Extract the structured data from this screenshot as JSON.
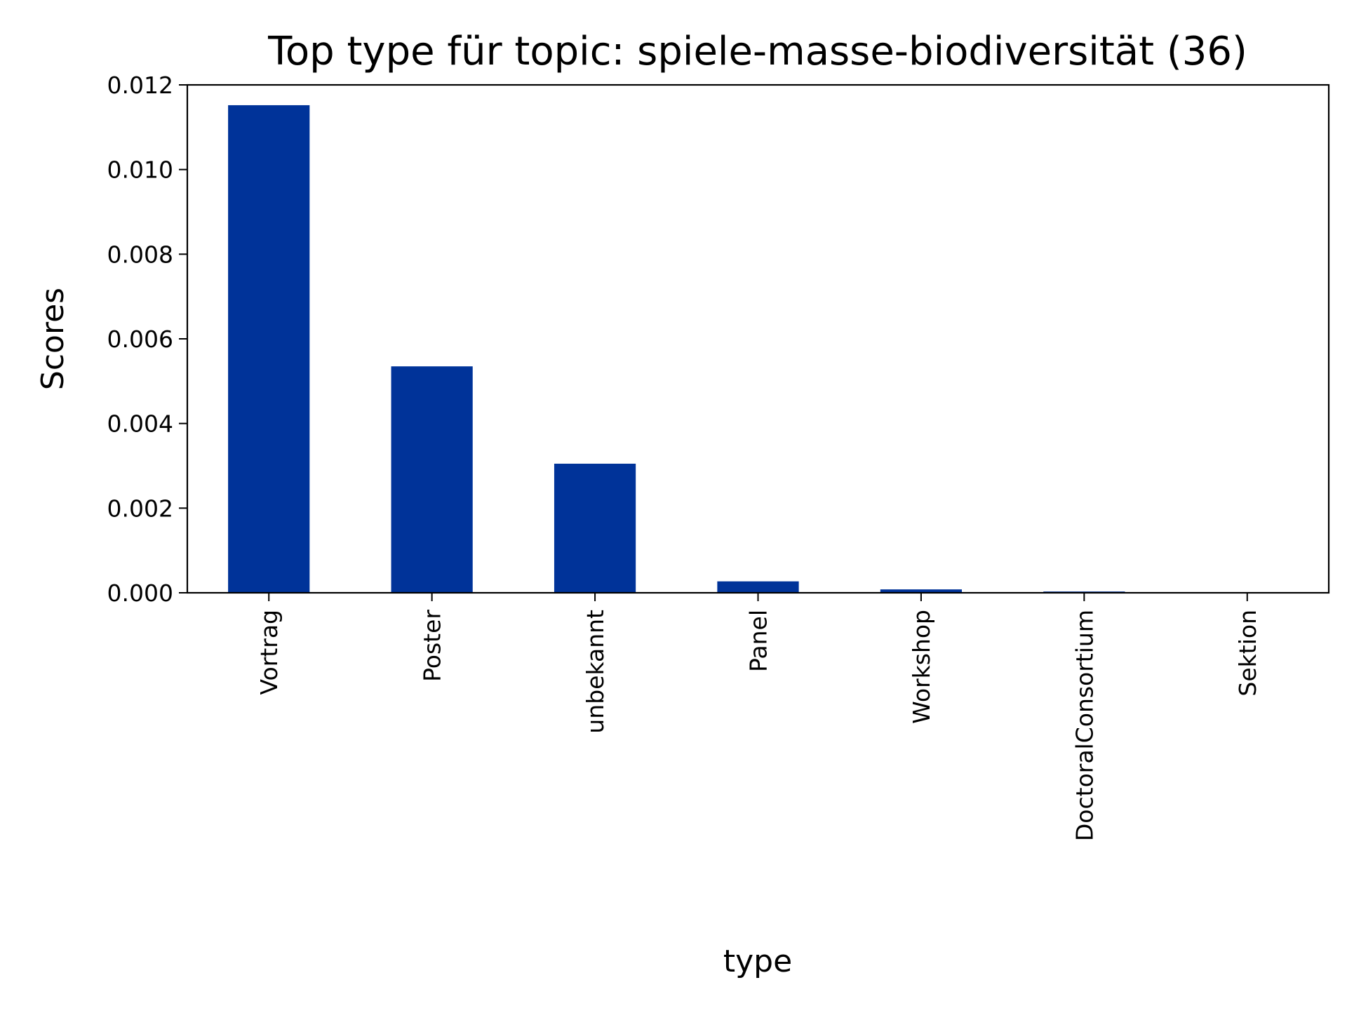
{
  "chart_data": {
    "type": "bar",
    "title": "Top type für topic: spiele-masse-biodiversität (36)",
    "xlabel": "type",
    "ylabel": "Scores",
    "categories": [
      "Vortrag",
      "Poster",
      "unbekannt",
      "Panel",
      "Workshop",
      "DoctoralConsortium",
      "Sektion"
    ],
    "values": [
      0.01152,
      0.00535,
      0.00305,
      0.00027,
      8e-05,
      3e-05,
      0.0
    ],
    "ylim": [
      0,
      0.012
    ],
    "yticks": [
      "0.000",
      "0.002",
      "0.004",
      "0.006",
      "0.008",
      "0.010",
      "0.012"
    ],
    "bar_color": "#003399",
    "grid": false,
    "legend": "none"
  }
}
